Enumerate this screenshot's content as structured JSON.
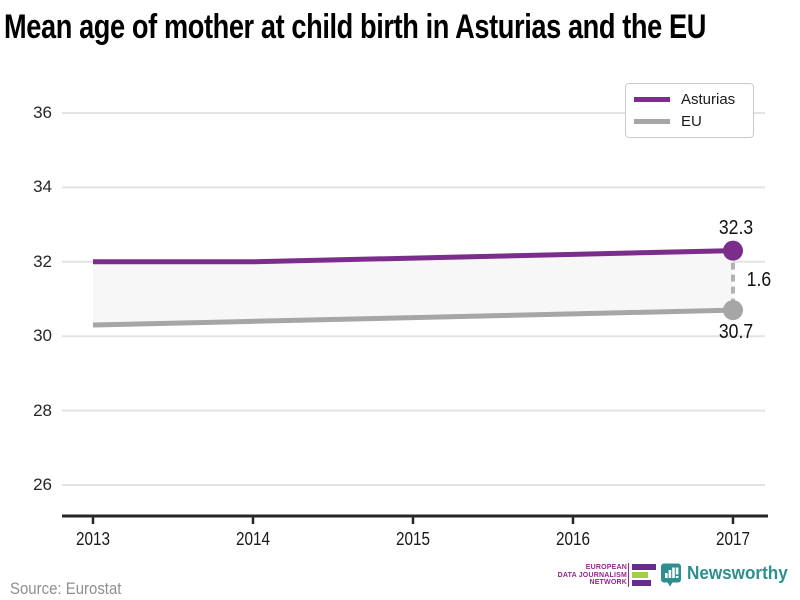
{
  "title": "Mean age of mother at child birth in Asturias and the EU",
  "legend": [
    {
      "label": "Asturias",
      "color": "#7b2d8c"
    },
    {
      "label": "EU",
      "color": "#a6a6a6"
    }
  ],
  "chart_data": {
    "type": "line",
    "title": "Mean age of mother at child birth in Asturias and the EU",
    "x": [
      2013,
      2014,
      2015,
      2016,
      2017
    ],
    "x_tick_labels": [
      "2013",
      "2014",
      "2015",
      "2016",
      "2017"
    ],
    "series": [
      {
        "name": "Asturias",
        "color": "#7b2d8c",
        "values": [
          32.0,
          32.0,
          32.1,
          32.2,
          32.3
        ]
      },
      {
        "name": "EU",
        "color": "#a6a6a6",
        "values": [
          30.3,
          30.4,
          30.5,
          30.6,
          30.7
        ]
      }
    ],
    "y_ticks": [
      36,
      34,
      32,
      30,
      28,
      26
    ],
    "ylim": [
      25.2,
      36.8
    ],
    "xlabel": "",
    "ylabel": "",
    "grid": true,
    "legend_position": "top-right",
    "band_fill_between_series": true,
    "band_color": "#f7f7f7",
    "annotations": {
      "last_point_top_label": "32.3",
      "last_point_bottom_label": "30.7",
      "difference_label": "1.6"
    }
  },
  "footer": {
    "source": "Source: Eurostat",
    "edjn_logo_text": "EUROPEAN\nDATA JOURNALISM\nNETWORK",
    "newsworthy_label": "Newsworthy"
  },
  "colors": {
    "gridline": "#e3e3e3",
    "axis": "#262626",
    "dashed_connector": "#b3b3b3",
    "edjn_purple": "#662d91",
    "edjn_green": "#a4cf3e",
    "newsworthy_teal": "#2f8e8e"
  }
}
